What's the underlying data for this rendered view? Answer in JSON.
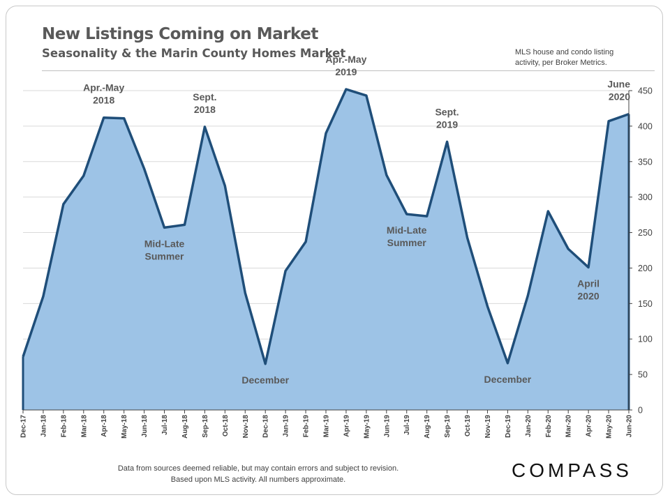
{
  "header": {
    "title": "New Listings Coming on Market",
    "subtitle": "Seasonality  & the Marin County Homes Market",
    "source_note": "MLS house and condo listing activity, per Broker Metrics."
  },
  "footer": {
    "disclaimer_line1": "Data from sources deemed reliable, but may contain errors and subject to revision.",
    "disclaimer_line2": "Based upon MLS activity.  All numbers approximate.",
    "logo": "COMPASS"
  },
  "colors": {
    "line": "#1f4e79",
    "fill": "#9dc3e6",
    "grid": "#d9d9d9",
    "axis": "#404040",
    "annotation": "#595959"
  },
  "chart_data": {
    "type": "area",
    "title": "New Listings Coming on Market",
    "subtitle": "Seasonality  & the Marin County Homes Market",
    "xlabel": "",
    "ylabel": "",
    "ylim": [
      0,
      450
    ],
    "yticks": [
      0,
      50,
      100,
      150,
      200,
      250,
      300,
      350,
      400,
      450
    ],
    "y_axis_side": "right",
    "grid": true,
    "legend": "none",
    "categories": [
      "Dec-17",
      "Jan-18",
      "Feb-18",
      "Mar-18",
      "Apr-18",
      "May-18",
      "Jun-18",
      "Jul-18",
      "Aug-18",
      "Sep-18",
      "Oct-18",
      "Nov-18",
      "Dec-18",
      "Jan-19",
      "Feb-19",
      "Mar-19",
      "Apr-19",
      "May-19",
      "Jun-19",
      "Jul-19",
      "Aug-19",
      "Sep-19",
      "Oct-19",
      "Nov-19",
      "Dec-19",
      "Jan-20",
      "Feb-20",
      "Mar-20",
      "Apr-20",
      "May-20",
      "Jun-20"
    ],
    "values": [
      75,
      160,
      290,
      330,
      412,
      411,
      340,
      257,
      261,
      399,
      316,
      165,
      65,
      196,
      237,
      390,
      452,
      443,
      331,
      276,
      273,
      378,
      243,
      146,
      66,
      161,
      280,
      227,
      201,
      407,
      417
    ],
    "annotations": [
      {
        "lines": [
          "Apr.-May",
          "2018"
        ],
        "category": "Apr-18",
        "position": "above"
      },
      {
        "lines": [
          "Sept.",
          "2018"
        ],
        "category": "Sep-18",
        "position": "above"
      },
      {
        "lines": [
          "Mid-Late",
          "Summer"
        ],
        "category": "Jul-18",
        "position": "below"
      },
      {
        "lines": [
          "December"
        ],
        "category": "Dec-18",
        "position": "below"
      },
      {
        "lines": [
          "Apr.-May",
          "2019"
        ],
        "category": "Apr-19",
        "position": "above"
      },
      {
        "lines": [
          "Sept.",
          "2019"
        ],
        "category": "Sep-19",
        "position": "above"
      },
      {
        "lines": [
          "Mid-Late",
          "Summer"
        ],
        "category": "Jul-19",
        "position": "below"
      },
      {
        "lines": [
          "December"
        ],
        "category": "Dec-19",
        "position": "below"
      },
      {
        "lines": [
          "April",
          "2020"
        ],
        "category": "Apr-20",
        "position": "below"
      },
      {
        "lines": [
          "June",
          "2020"
        ],
        "category": "Jun-20",
        "position": "above"
      }
    ]
  }
}
